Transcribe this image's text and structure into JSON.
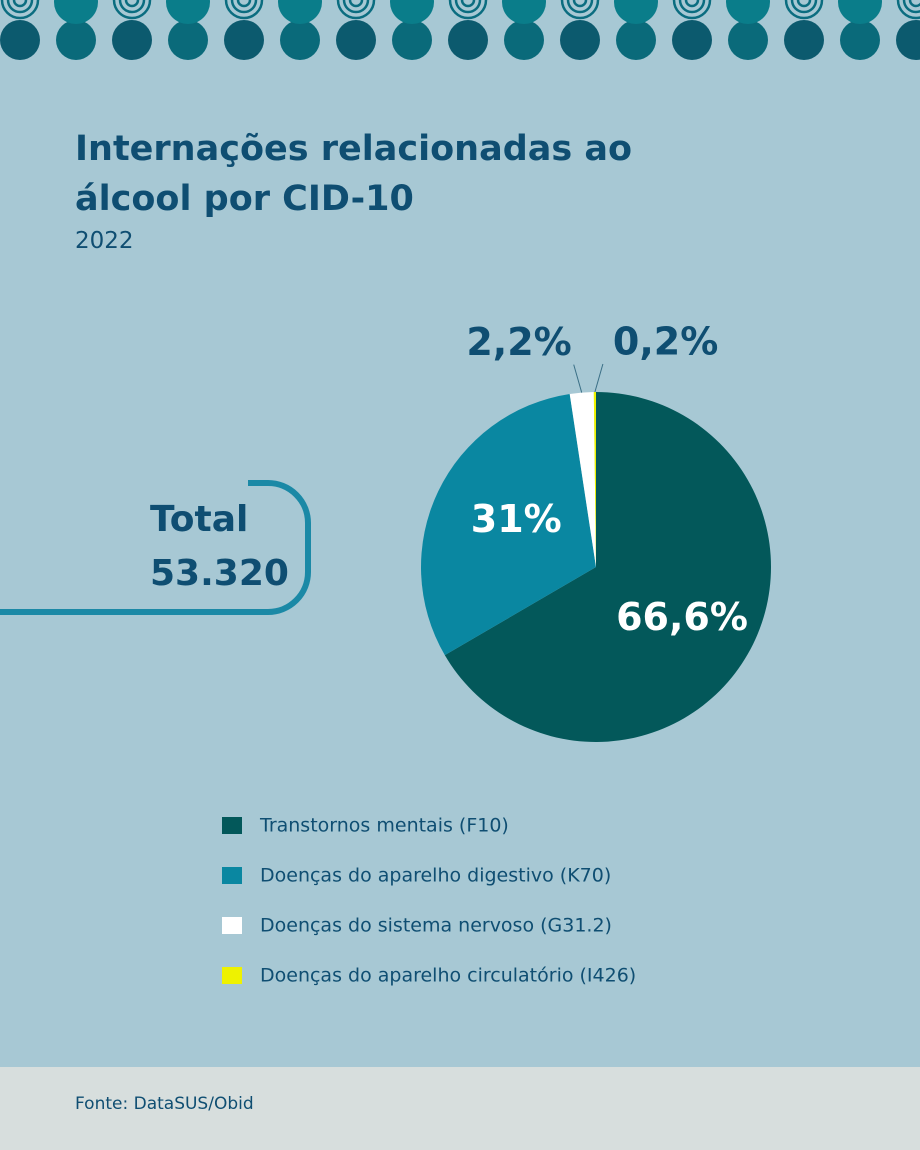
{
  "chart_data": {
    "type": "pie",
    "title": "Internações relacionadas ao álcool por CID-10",
    "subtitle": "2022",
    "total_label": "Total",
    "total": "53.320",
    "categories": [
      "Transtornos mentais (F10)",
      "Doenças do aparelho digestivo (K70)",
      "Doenças do sistema nervoso (G31.2)",
      "Doenças do aparelho circulatório (I426)"
    ],
    "values": [
      66.6,
      31,
      2.2,
      0.2
    ],
    "value_labels": [
      "66,6%",
      "31%",
      "2,2%",
      "0,2%"
    ],
    "colors": [
      "#03585a",
      "#0a87a1",
      "#ffffff",
      "#eef200"
    ],
    "source": "Fonte: DataSUS/Obid"
  }
}
